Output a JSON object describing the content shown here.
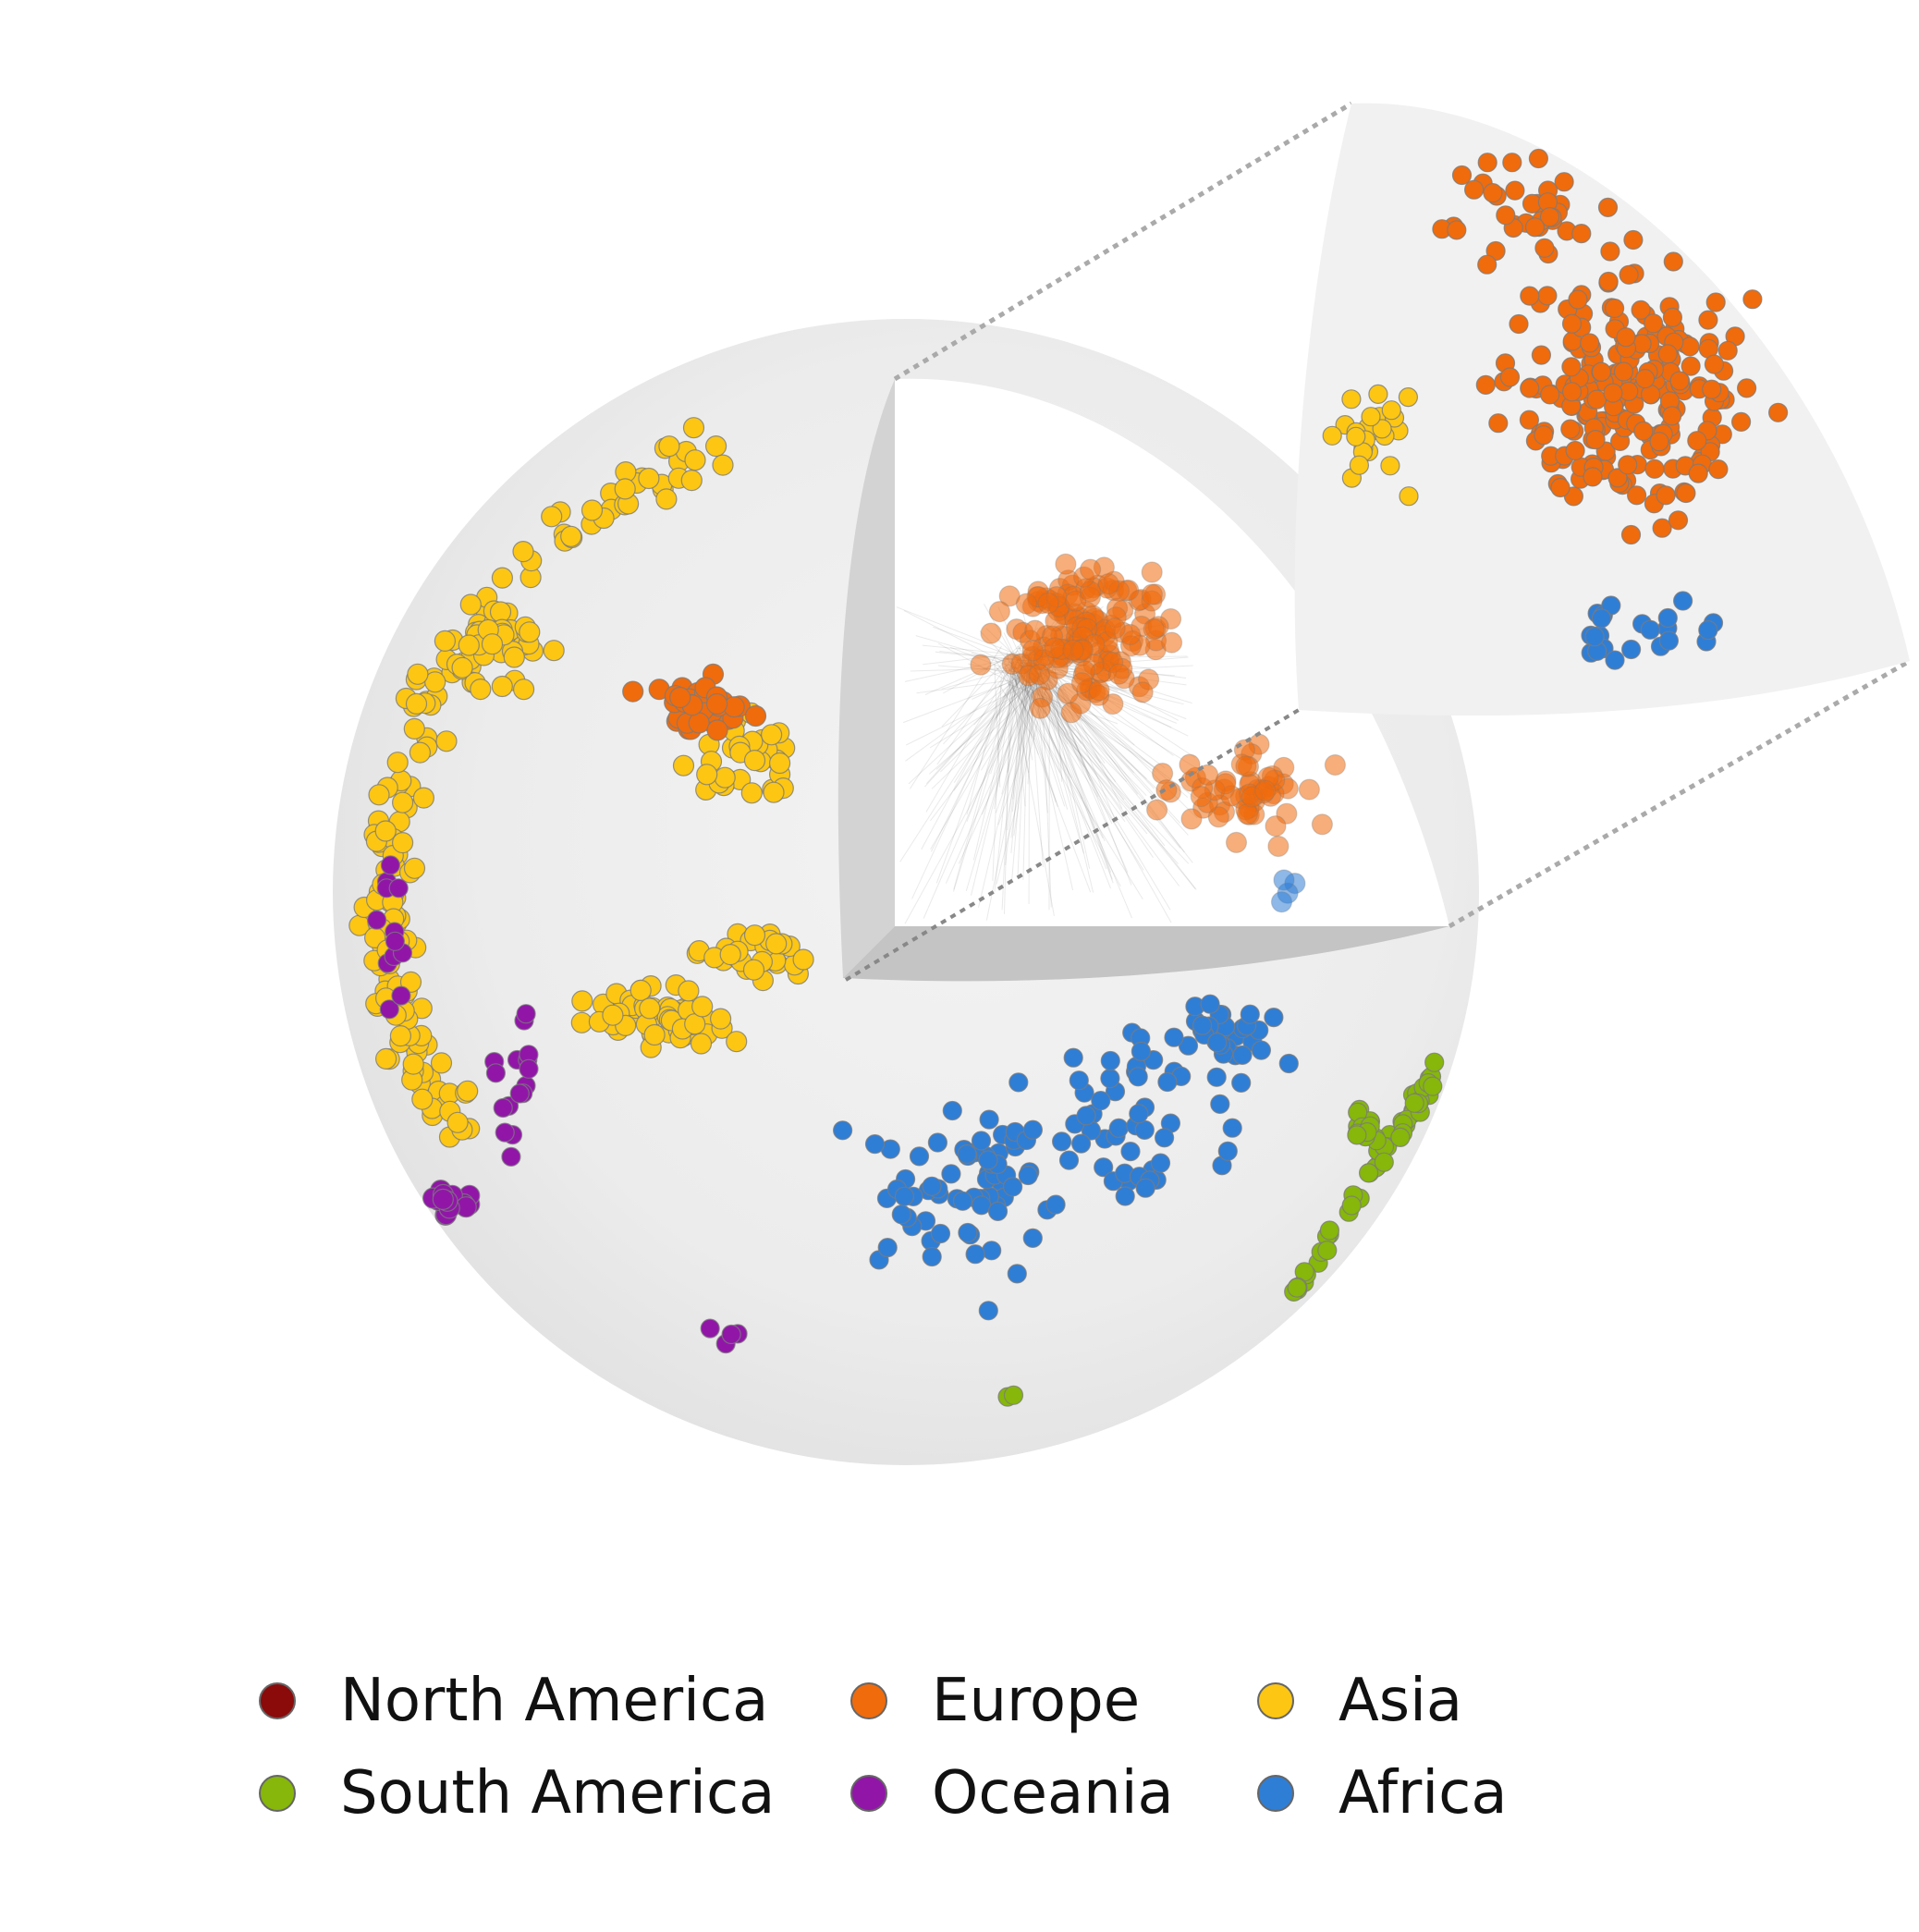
{
  "chart_data": {
    "type": "scatter",
    "title": "",
    "xlabel": "",
    "ylabel": "",
    "grid": false,
    "legend_placement": "bottom-center",
    "series": [
      {
        "name": "North America",
        "color": "#8b0a0a"
      },
      {
        "name": "Europe",
        "color": "#f06b0c"
      },
      {
        "name": "Asia",
        "color": "#fcc613"
      },
      {
        "name": "South America",
        "color": "#86b70a"
      },
      {
        "name": "Oceania",
        "color": "#9116a8"
      },
      {
        "name": "Africa",
        "color": "#2f7ed6"
      }
    ],
    "panels": [
      "sphere",
      "cutaway-wedge",
      "zoom-inset"
    ]
  }
}
